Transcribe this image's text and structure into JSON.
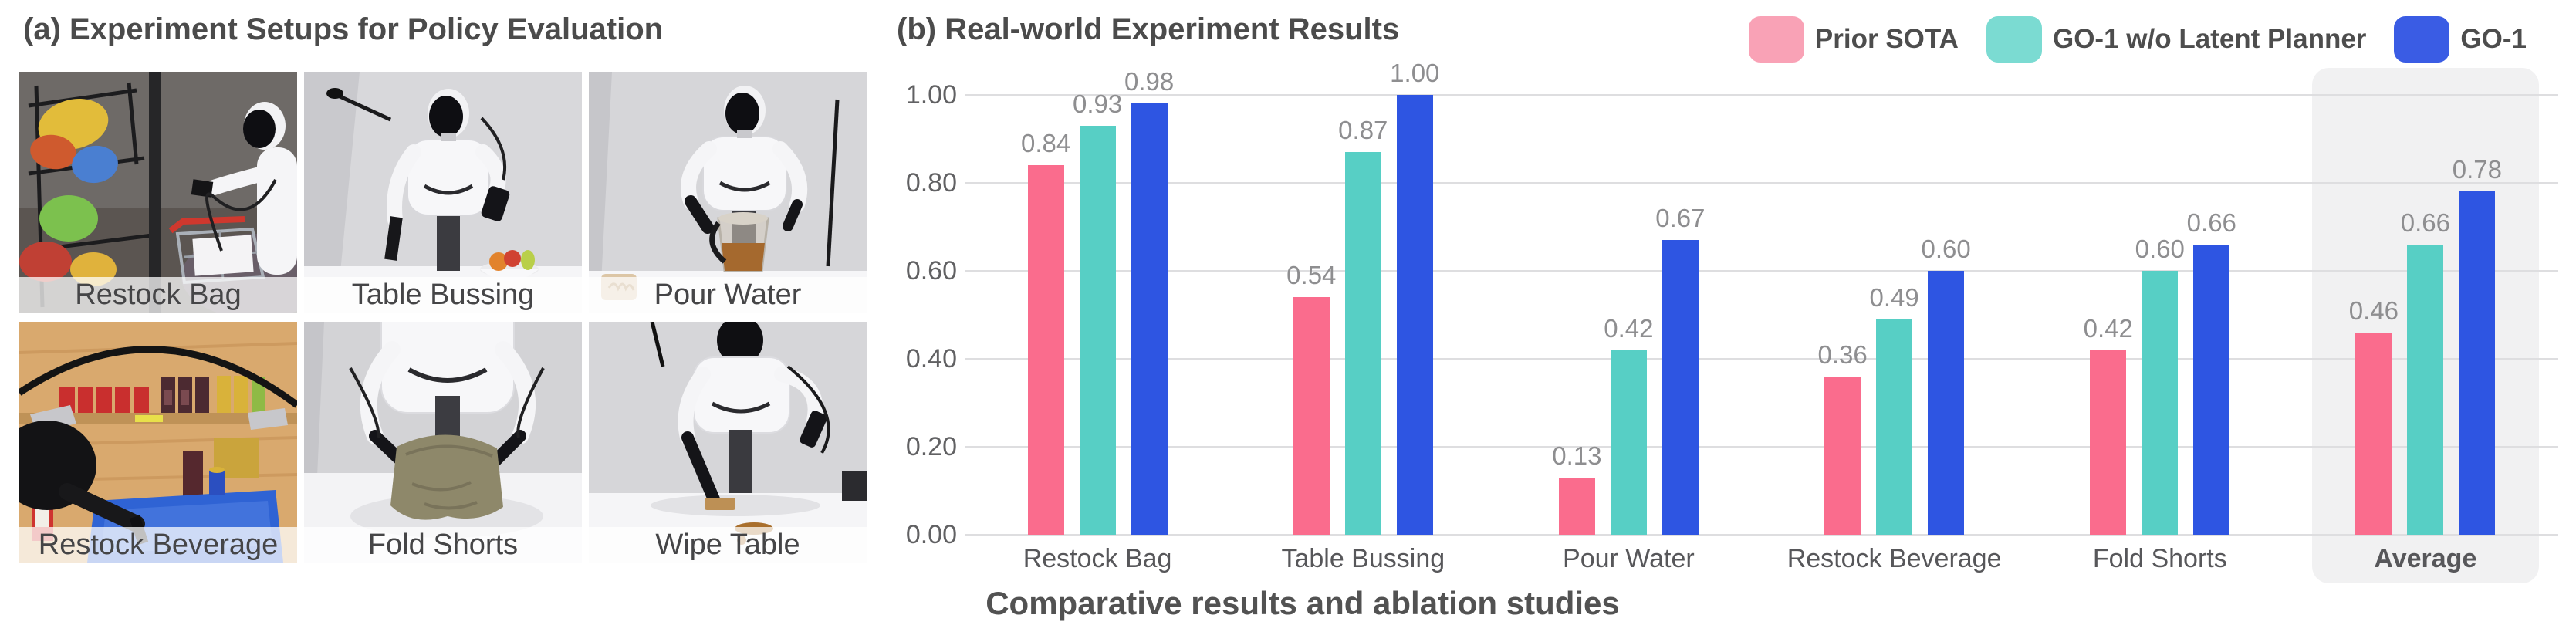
{
  "panel_a": {
    "title": "(a) Experiment Setups for Policy Evaluation",
    "photos": [
      {
        "label": "Restock Bag",
        "scene": "robot-restocking-snack-bags-from-wire-shelf-into-shopping-cart"
      },
      {
        "label": "Table Bussing",
        "scene": "robot-at-white-table-with-fruit-bowl"
      },
      {
        "label": "Pour Water",
        "scene": "robot-pouring-tea-from-transparent-kettle"
      },
      {
        "label": "Restock Beverage",
        "scene": "robot-arm-moving-cans-and-bottles-from-wooden-shelf-into-blue-crate"
      },
      {
        "label": "Fold Shorts",
        "scene": "robot-folding-khaki-shorts-on-white-table"
      },
      {
        "label": "Wipe Table",
        "scene": "robot-wiping-brown-spill-on-white-table-with-sponge"
      }
    ]
  },
  "panel_b": {
    "title": "(b) Real-world Experiment Results",
    "caption": "Comparative results and ablation studies"
  },
  "chart_data": {
    "type": "bar",
    "title": "(b) Real-world Experiment Results",
    "categories": [
      "Restock Bag",
      "Table Bussing",
      "Pour Water",
      "Restock Beverage",
      "Fold Shorts",
      "Average"
    ],
    "series": [
      {
        "name": "Prior SOTA",
        "color": "#FA6C8D",
        "legend_color": "#F9A2B6",
        "values": [
          0.84,
          0.54,
          0.13,
          0.36,
          0.42,
          0.46
        ]
      },
      {
        "name": "GO-1 w/o Latent Planner",
        "color": "#57CFC5",
        "legend_color": "#7BDBD2",
        "values": [
          0.93,
          0.87,
          0.42,
          0.49,
          0.6,
          0.66
        ]
      },
      {
        "name": "GO-1",
        "color": "#2E55E2",
        "legend_color": "#3A5CE4",
        "values": [
          0.98,
          1.0,
          0.67,
          0.6,
          0.66,
          0.78
        ]
      }
    ],
    "ylim": [
      0,
      1.0
    ],
    "yticks": [
      "0.00",
      "0.20",
      "0.40",
      "0.60",
      "0.80",
      "1.00"
    ],
    "grid": true,
    "legend_position": "top-right",
    "highlighted_category": "Average",
    "value_label_decimals": 2,
    "colors": {
      "title_text": "#4B4B4B",
      "axis_text": "#616163",
      "value_label_text": "#8E8E90",
      "gridline": "#DEDEE0",
      "average_highlight": "#F1F1F2"
    }
  }
}
